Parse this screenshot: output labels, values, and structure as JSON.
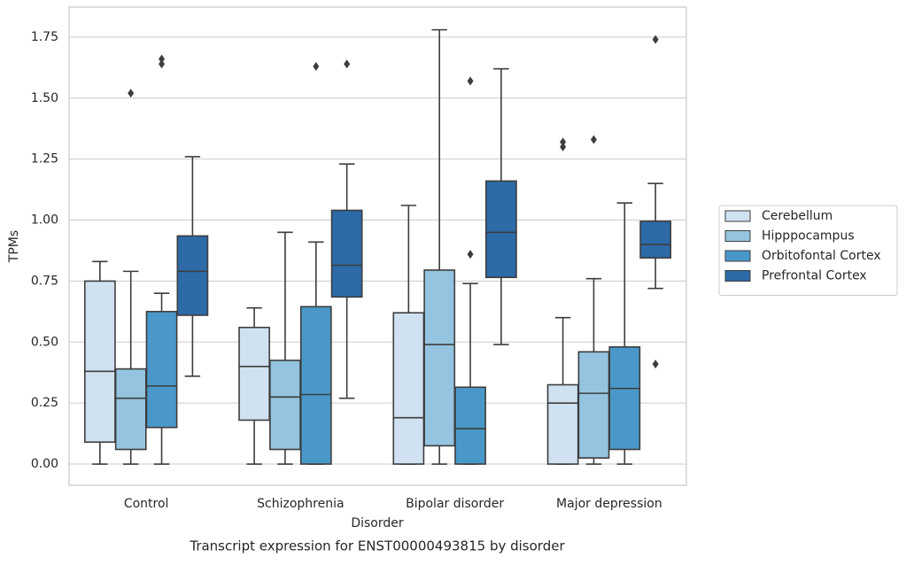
{
  "chart_data": {
    "type": "box",
    "title": "Transcript expression for ENST00000493815 by disorder",
    "x_label": "Disorder",
    "y_label": "TPMs",
    "categories": [
      "Control",
      "Schizophrenia",
      "Bipolar disorder",
      "Major depression"
    ],
    "ylim": [
      -0.087,
      1.873
    ],
    "yticks": [
      {
        "value": 0,
        "label": "0.00"
      },
      {
        "value": 0.25,
        "label": "0.25"
      },
      {
        "value": 0.5,
        "label": "0.50"
      },
      {
        "value": 0.75,
        "label": "0.75"
      },
      {
        "value": 1,
        "label": "1.00"
      },
      {
        "value": 1.25,
        "label": "1.25"
      },
      {
        "value": 1.5,
        "label": "1.50"
      },
      {
        "value": 1.75,
        "label": "1.75"
      }
    ],
    "grid": true,
    "legend": "right",
    "series": [
      {
        "name": "Cerebellum",
        "color": "#d0e1f2",
        "whisker_low": [
          0,
          0,
          0,
          0
        ],
        "q1": [
          0.09,
          0.18,
          0,
          0
        ],
        "median": [
          0.38,
          0.4,
          0.19,
          0.25
        ],
        "q3": [
          0.75,
          0.56,
          0.62,
          0.325
        ],
        "whisker_high": [
          0.83,
          0.64,
          1.06,
          0.6
        ],
        "outliers": [
          [],
          [],
          [],
          [
            1.32,
            1.3
          ]
        ]
      },
      {
        "name": "Hipppocampus",
        "color": "#94c4df",
        "whisker_low": [
          0,
          0,
          0,
          0
        ],
        "q1": [
          0.06,
          0.06,
          0.075,
          0.025
        ],
        "median": [
          0.27,
          0.275,
          0.49,
          0.29
        ],
        "q3": [
          0.39,
          0.425,
          0.795,
          0.46
        ],
        "whisker_high": [
          0.79,
          0.95,
          1.78,
          0.76
        ],
        "outliers": [
          [
            1.52
          ],
          [],
          [],
          [
            1.33
          ]
        ]
      },
      {
        "name": "Orbitofontal Cortex",
        "color": "#4a98c9",
        "whisker_low": [
          0,
          0,
          0,
          0
        ],
        "q1": [
          0.15,
          0,
          0,
          0.06
        ],
        "median": [
          0.32,
          0.285,
          0.145,
          0.31
        ],
        "q3": [
          0.625,
          0.645,
          0.315,
          0.48
        ],
        "whisker_high": [
          0.7,
          0.91,
          0.74,
          1.07
        ],
        "outliers": [
          [
            1.66,
            1.64
          ],
          [
            1.63
          ],
          [
            0.86,
            1.57
          ],
          []
        ]
      },
      {
        "name": "Prefrontal Cortex",
        "color": "#2c6aa8",
        "whisker_low": [
          0.36,
          0.27,
          0.49,
          0.72
        ],
        "q1": [
          0.61,
          0.685,
          0.765,
          0.845
        ],
        "median": [
          0.79,
          0.815,
          0.95,
          0.9
        ],
        "q3": [
          0.935,
          1.04,
          1.16,
          0.995
        ],
        "whisker_high": [
          1.26,
          1.23,
          1.62,
          1.15
        ],
        "outliers": [
          [],
          [
            1.64
          ],
          [],
          [
            0.41,
            1.74
          ]
        ]
      }
    ]
  }
}
